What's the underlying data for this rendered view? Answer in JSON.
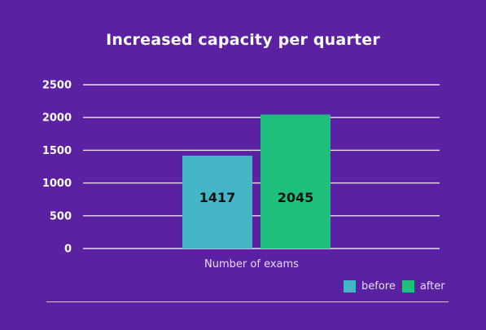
{
  "chart_data": {
    "type": "bar",
    "title": "Increased capacity per quarter",
    "xlabel": "Number of exams",
    "ylabel": "",
    "ylim": [
      0,
      2500
    ],
    "yticks": [
      0,
      500,
      1000,
      1500,
      2000,
      2500
    ],
    "categories": [
      "Number of exams"
    ],
    "series": [
      {
        "name": "before",
        "values": [
          1417
        ],
        "color": "#45b6c8"
      },
      {
        "name": "after",
        "values": [
          2045
        ],
        "color": "#1fbf7c"
      }
    ],
    "data_labels": [
      "1417",
      "2045"
    ],
    "grid": true,
    "legend_position": "bottom-right"
  }
}
